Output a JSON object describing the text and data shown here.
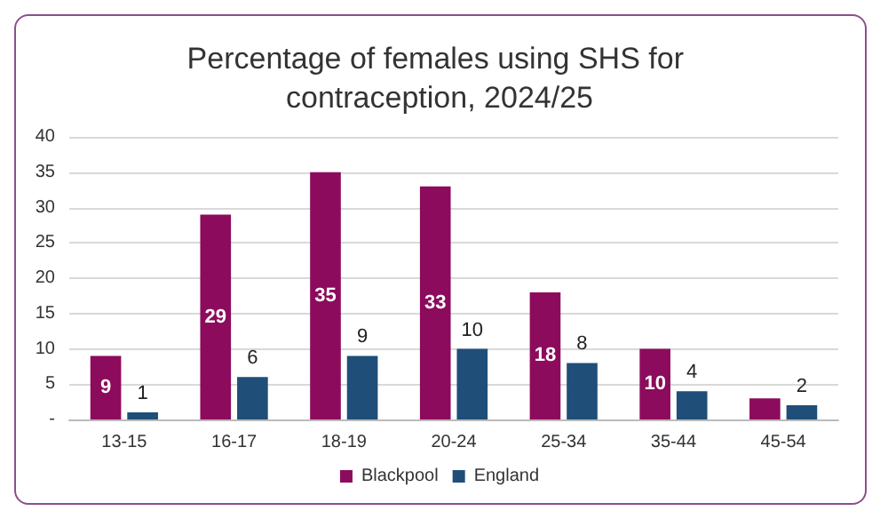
{
  "chart_data": {
    "type": "bar",
    "title": "Percentage of females using SHS for contraception, 2024/25",
    "categories": [
      "13-15",
      "16-17",
      "18-19",
      "20-24",
      "25-34",
      "35-44",
      "45-54"
    ],
    "series": [
      {
        "name": "Blackpool",
        "color": "#8c0b5c",
        "values": [
          9,
          29,
          35,
          33,
          18,
          10,
          3
        ],
        "value_labels": [
          "9",
          "29",
          "35",
          "33",
          "18",
          "10",
          null
        ]
      },
      {
        "name": "England",
        "color": "#1f4e79",
        "values": [
          1,
          6,
          9,
          10,
          8,
          4,
          2
        ],
        "value_labels": [
          "1",
          "6",
          "9",
          "10",
          "8",
          "4",
          "2"
        ]
      }
    ],
    "ylim": [
      0,
      40
    ],
    "yticks": [
      {
        "value": 0,
        "label": "-"
      },
      5,
      10,
      15,
      20,
      25,
      30,
      35,
      40
    ],
    "grid": "y",
    "legend": "bottom"
  }
}
